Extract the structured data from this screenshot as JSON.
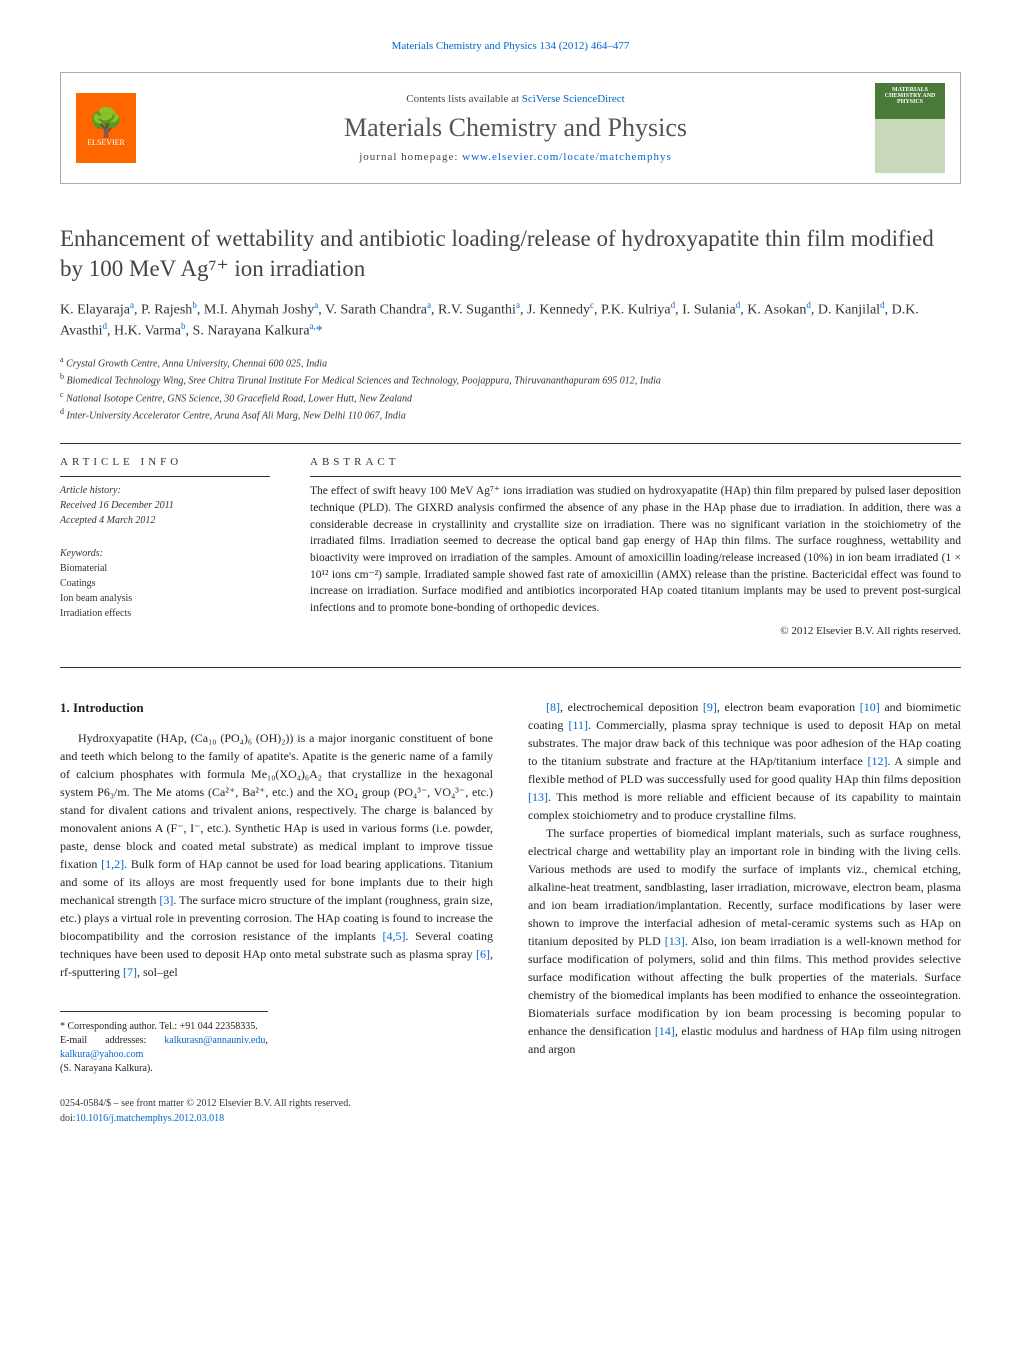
{
  "header": {
    "top_link": "Materials Chemistry and Physics 134 (2012) 464–477",
    "contents_prefix": "Contents lists available at ",
    "contents_link": "SciVerse ScienceDirect",
    "journal_name": "Materials Chemistry and Physics",
    "homepage_prefix": "journal homepage: ",
    "homepage_link": "www.elsevier.com/locate/matchemphys",
    "elsevier_label": "ELSEVIER",
    "cover_title": "MATERIALS CHEMISTRY AND PHYSICS"
  },
  "title": "Enhancement of wettability and antibiotic loading/release of hydroxyapatite thin film modified by 100 MeV Ag⁷⁺ ion irradiation",
  "authors_html": "K. Elayaraja<sup>a</sup>, P. Rajesh<sup>b</sup>, M.I. Ahymah Joshy<sup>a</sup>, V. Sarath Chandra<sup>a</sup>, R.V. Suganthi<sup>a</sup>, J. Kennedy<sup>c</sup>, P.K. Kulriya<sup>d</sup>, I. Sulania<sup>d</sup>, K. Asokan<sup>d</sup>, D. Kanjilal<sup>d</sup>, D.K. Avasthi<sup>d</sup>, H.K. Varma<sup>b</sup>, S. Narayana Kalkura<sup>a,</sup><span class='asterisk'>*</span>",
  "affiliations": [
    {
      "sup": "a",
      "text": "Crystal Growth Centre, Anna University, Chennai 600 025, India"
    },
    {
      "sup": "b",
      "text": "Biomedical Technology Wing, Sree Chitra Tirunal Institute For Medical Sciences and Technology, Poojappura, Thiruvananthapuram 695 012, India"
    },
    {
      "sup": "c",
      "text": "National Isotope Centre, GNS Science, 30 Gracefield Road, Lower Hutt, New Zealand"
    },
    {
      "sup": "d",
      "text": "Inter-University Accelerator Centre, Aruna Asaf Ali Marg, New Delhi 110 067, India"
    }
  ],
  "article_info": {
    "label": "ARTICLE INFO",
    "history_label": "Article history:",
    "received": "Received 16 December 2011",
    "accepted": "Accepted 4 March 2012",
    "keywords_label": "Keywords:",
    "keywords": [
      "Biomaterial",
      "Coatings",
      "Ion beam analysis",
      "Irradiation effects"
    ]
  },
  "abstract": {
    "label": "ABSTRACT",
    "text": "The effect of swift heavy 100 MeV Ag⁷⁺ ions irradiation was studied on hydroxyapatite (HAp) thin film prepared by pulsed laser deposition technique (PLD). The GIXRD analysis confirmed the absence of any phase in the HAp phase due to irradiation. In addition, there was a considerable decrease in crystallinity and crystallite size on irradiation. There was no significant variation in the stoichiometry of the irradiated films. Irradiation seemed to decrease the optical band gap energy of HAp thin films. The surface roughness, wettability and bioactivity were improved on irradiation of the samples. Amount of amoxicillin loading/release increased (10%) in ion beam irradiated (1 × 10¹² ions cm⁻²) sample. Irradiated sample showed fast rate of amoxicillin (AMX) release than the pristine. Bactericidal effect was found to increase on irradiation. Surface modified and antibiotics incorporated HAp coated titanium implants may be used to prevent post-surgical infections and to promote bone-bonding of orthopedic devices.",
    "copyright": "© 2012 Elsevier B.V. All rights reserved."
  },
  "body": {
    "section_heading": "1. Introduction",
    "col1_p1": "Hydroxyapatite (HAp, (Ca₁₀ (PO₄)₆ (OH)₂)) is a major inorganic constituent of bone and teeth which belong to the family of apatite's. Apatite is the generic name of a family of calcium phosphates with formula Me₁₀(XO₄)₆A₂ that crystallize in the hexagonal system P6₃/m. The Me atoms (Ca²⁺, Ba²⁺, etc.) and the XO₄ group (PO₄³⁻, VO₄³⁻, etc.) stand for divalent cations and trivalent anions, respectively. The charge is balanced by monovalent anions A (F⁻, I⁻, etc.). Synthetic HAp is used in various forms (i.e. powder, paste, dense block and coated metal substrate) as medical implant to improve tissue fixation [1,2]. Bulk form of HAp cannot be used for load bearing applications. Titanium and some of its alloys are most frequently used for bone implants due to their high mechanical strength [3]. The surface micro structure of the implant (roughness, grain size, etc.) plays a virtual role in preventing corrosion. The HAp coating is found to increase the biocompatibility and the corrosion resistance of the implants [4,5]. Several coating techniques have been used to deposit HAp onto metal substrate such as plasma spray [6], rf-sputtering [7], sol–gel",
    "col2_p1": "[8], electrochemical deposition [9], electron beam evaporation [10] and biomimetic coating [11]. Commercially, plasma spray technique is used to deposit HAp on metal substrates. The major draw back of this technique was poor adhesion of the HAp coating to the titanium substrate and fracture at the HAp/titanium interface [12]. A simple and flexible method of PLD was successfully used for good quality HAp thin films deposition [13]. This method is more reliable and efficient because of its capability to maintain complex stoichiometry and to produce crystalline films.",
    "col2_p2": "The surface properties of biomedical implant materials, such as surface roughness, electrical charge and wettability play an important role in binding with the living cells. Various methods are used to modify the surface of implants viz., chemical etching, alkaline-heat treatment, sandblasting, laser irradiation, microwave, electron beam, plasma and ion beam irradiation/implantation. Recently, surface modifications by laser were shown to improve the interfacial adhesion of metal-ceramic systems such as HAp on titanium deposited by PLD [13]. Also, ion beam irradiation is a well-known method for surface modification of polymers, solid and thin films. This method provides selective surface modification without affecting the bulk properties of the materials. Surface chemistry of the biomedical implants has been modified to enhance the osseointegration. Biomaterials surface modification by ion beam processing is becoming popular to enhance the densification [14], elastic modulus and hardness of HAp film using nitrogen and argon"
  },
  "footnotes": {
    "corresponding": "* Corresponding author. Tel.: +91 044 22358335.",
    "email_label": "E-mail addresses: ",
    "email1": "kalkurasn@annauniv.edu",
    "email2": "kalkura@yahoo.com",
    "author_name": "(S. Narayana Kalkura)."
  },
  "bottom": {
    "line1": "0254-0584/$ – see front matter © 2012 Elsevier B.V. All rights reserved.",
    "doi_prefix": "doi:",
    "doi": "10.1016/j.matchemphys.2012.03.018"
  },
  "colors": {
    "link": "#0066cc",
    "elsevier_orange": "#ff6600",
    "cover_green": "#4a7a3a"
  }
}
